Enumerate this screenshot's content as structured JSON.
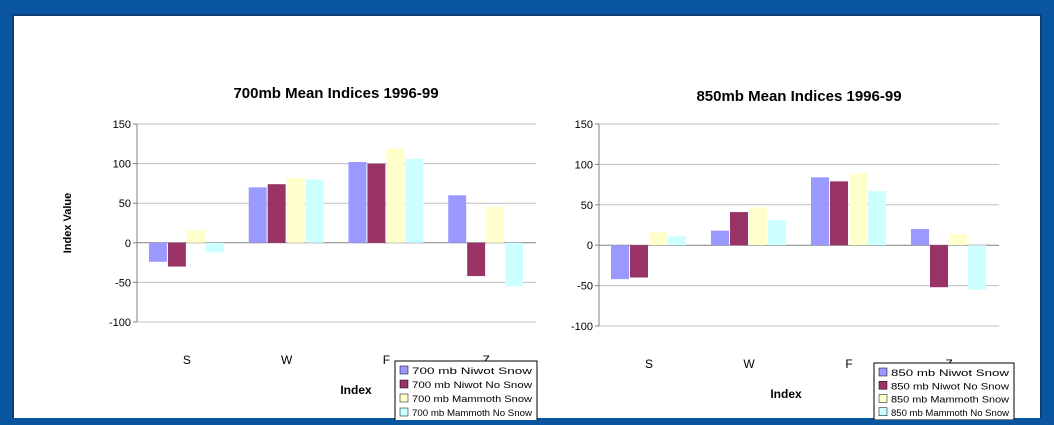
{
  "colors": {
    "background": "#0a55a0",
    "panel": "#ffffff",
    "series": [
      "#9999ff",
      "#993366",
      "#ffffcc",
      "#ccffff"
    ]
  },
  "chart_data": [
    {
      "type": "bar",
      "title": "700mb Mean Indices 1996-99",
      "xlabel": "Index",
      "ylabel": "Index Value",
      "ylim": [
        -100,
        150
      ],
      "yticks": [
        150,
        100,
        50,
        0,
        -50,
        -100
      ],
      "categories": [
        "S",
        "W",
        "F",
        "Z"
      ],
      "grid": true,
      "legend": "bottom-right",
      "series": [
        {
          "name": "700 mb Niwot Snow",
          "values": [
            -24,
            70,
            102,
            60
          ]
        },
        {
          "name": "700 mb Niwot No Snow",
          "values": [
            -30,
            74,
            100,
            -42
          ]
        },
        {
          "name": "700 mb Mammoth Snow",
          "values": [
            16,
            82,
            119,
            45
          ]
        },
        {
          "name": "700 mb Mammoth No Snow",
          "values": [
            -12,
            80,
            106,
            -55
          ]
        }
      ]
    },
    {
      "type": "bar",
      "title": "850mb Mean Indices 1996-99",
      "xlabel": "Index",
      "ylabel": "",
      "ylim": [
        -100,
        150
      ],
      "yticks": [
        150,
        100,
        50,
        0,
        -50,
        -100
      ],
      "categories": [
        "S",
        "W",
        "F",
        "Z"
      ],
      "grid": true,
      "legend": "bottom-right",
      "series": [
        {
          "name": "850 mb Niwot Snow",
          "values": [
            -42,
            18,
            84,
            20
          ]
        },
        {
          "name": "850 mb Niwot No Snow",
          "values": [
            -40,
            41,
            79,
            -52
          ]
        },
        {
          "name": "850 mb Mammoth Snow",
          "values": [
            16,
            47,
            89,
            14
          ]
        },
        {
          "name": "850 mb Mammoth No Snow",
          "values": [
            11,
            31,
            67,
            -55
          ]
        }
      ]
    }
  ]
}
